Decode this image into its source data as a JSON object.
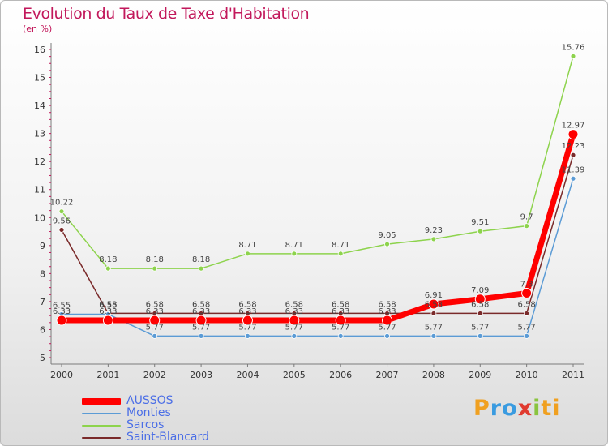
{
  "title": "Evolution du Taux de Taxe d'Habitation",
  "subtitle": "(en %)",
  "logo_text": "Proxiti",
  "chart_data": {
    "type": "line",
    "title": "Evolution du Taux de Taxe d'Habitation",
    "ylabel": "(en %)",
    "xlabel": "",
    "categories": [
      "2000",
      "2001",
      "2002",
      "2003",
      "2004",
      "2005",
      "2006",
      "2007",
      "2008",
      "2009",
      "2010",
      "2011"
    ],
    "ylim": [
      5,
      16
    ],
    "yticks": [
      "5",
      "6",
      "7",
      "8",
      "9",
      "10",
      "11",
      "12",
      "13",
      "14",
      "15",
      "16"
    ],
    "grid": false,
    "legend_position": "bottom-left",
    "series": [
      {
        "name": "AUSSOS",
        "color": "#ff0000",
        "values": [
          6.33,
          6.33,
          6.33,
          6.33,
          6.33,
          6.33,
          6.33,
          6.33,
          6.91,
          7.09,
          7.3,
          12.97
        ],
        "labels": [
          "6.33",
          "6.33",
          "6.33",
          "6.33",
          "6.33",
          "6.33",
          "6.33",
          "6.33",
          "6.91",
          "7.09",
          "7.3",
          "12.97"
        ]
      },
      {
        "name": "Monties",
        "color": "#5b9bd5",
        "values": [
          6.55,
          6.55,
          5.77,
          5.77,
          5.77,
          5.77,
          5.77,
          5.77,
          5.77,
          5.77,
          5.77,
          11.39
        ],
        "labels": [
          "6.55",
          "6.55",
          "5.77",
          "5.77",
          "5.77",
          "5.77",
          "5.77",
          "5.77",
          "5.77",
          "5.77",
          "5.77",
          "11.39"
        ]
      },
      {
        "name": "Sarcos",
        "color": "#8dd34c",
        "values": [
          10.22,
          8.18,
          8.18,
          8.18,
          8.71,
          8.71,
          8.71,
          9.05,
          9.23,
          9.51,
          9.7,
          15.76
        ],
        "labels": [
          "10.22",
          "8.18",
          "8.18",
          "8.18",
          "8.71",
          "8.71",
          "8.71",
          "9.05",
          "9.23",
          "9.51",
          "9.7",
          "15.76"
        ]
      },
      {
        "name": "Saint-Blancard",
        "color": "#7a2a2a",
        "values": [
          9.56,
          6.58,
          6.58,
          6.58,
          6.58,
          6.58,
          6.58,
          6.58,
          6.58,
          6.58,
          6.58,
          12.23
        ],
        "labels": [
          "9.56",
          "6.58",
          "6.58",
          "6.58",
          "6.58",
          "6.58",
          "6.58",
          "6.58",
          "6.58",
          "6.58",
          "6.58",
          "12.23"
        ]
      }
    ]
  }
}
